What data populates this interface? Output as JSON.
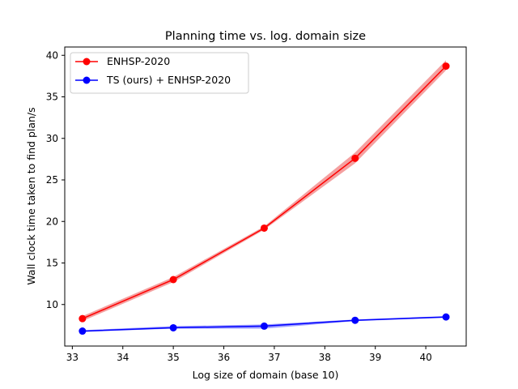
{
  "chart_data": {
    "type": "line",
    "title": "Planning time vs. log. domain size",
    "xlabel": "Log size of domain (base 10)",
    "ylabel": "Wall clock time taken to find plan/s",
    "xlim": [
      32.85,
      40.8
    ],
    "ylim": [
      5.0,
      41.0
    ],
    "xticks": [
      33,
      34,
      35,
      36,
      37,
      38,
      39,
      40
    ],
    "yticks": [
      10,
      15,
      20,
      25,
      30,
      35,
      40
    ],
    "grid": false,
    "legend_position": "top-left",
    "x": [
      33.2,
      35.0,
      36.8,
      38.6,
      40.4
    ],
    "series": [
      {
        "name": "ENHSP-2020",
        "color": "#ff0000",
        "band_color": "#f08080",
        "values": [
          8.3,
          13.0,
          19.2,
          27.6,
          38.7
        ],
        "lower": [
          8.0,
          12.7,
          19.0,
          27.0,
          38.2
        ],
        "upper": [
          8.6,
          13.3,
          19.4,
          28.3,
          39.4
        ]
      },
      {
        "name": "TS (ours) + ENHSP-2020",
        "color": "#0000ff",
        "band_color": "#8080ff",
        "values": [
          6.8,
          7.2,
          7.4,
          8.1,
          8.5
        ],
        "lower": [
          6.7,
          7.1,
          7.1,
          8.0,
          8.4
        ],
        "upper": [
          6.9,
          7.4,
          7.6,
          8.2,
          8.6
        ]
      }
    ]
  }
}
